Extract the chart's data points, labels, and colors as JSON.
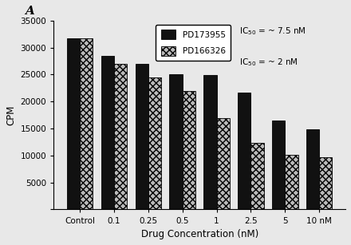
{
  "categories": [
    "Control",
    "0.1",
    "0.25",
    "0.5",
    "1",
    "2.5",
    "5",
    "10 nM"
  ],
  "pd173955": [
    31700,
    28500,
    27000,
    25000,
    24900,
    21700,
    16500,
    14900
  ],
  "pd166326": [
    31700,
    27000,
    24500,
    21900,
    16900,
    12400,
    10100,
    9700
  ],
  "bar_color_solid": "#111111",
  "bar_color_hatched_face": "#bbbbbb",
  "xlabel": "Drug Concentration (nM)",
  "ylabel": "CPM",
  "ylim": [
    0,
    35000
  ],
  "yticks": [
    0,
    5000,
    10000,
    15000,
    20000,
    25000,
    30000,
    35000
  ],
  "legend_label_1": "PD173955",
  "legend_label_2": "PD166326",
  "ic50_text_1": "= ~ 7.5 nM",
  "ic50_text_2": "= ~ 2 nM",
  "title_letter": "A",
  "bar_width": 0.38,
  "bg_color": "#e8e8e8"
}
